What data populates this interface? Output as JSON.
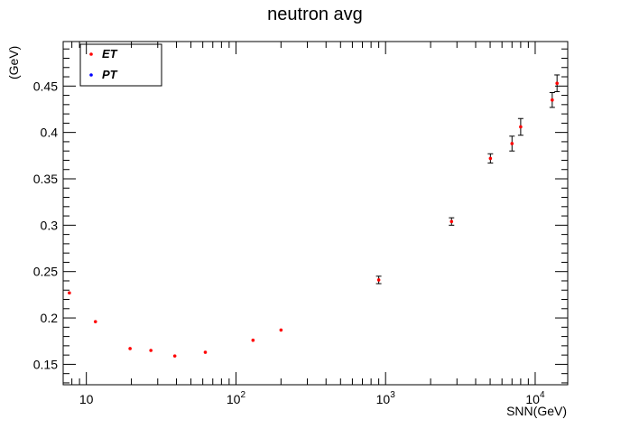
{
  "chart_data": {
    "type": "scatter",
    "title": "neutron avg",
    "xlabel": "SNN(GeV)",
    "ylabel": "(GeV)",
    "xscale": "log",
    "xlim": [
      7.0,
      16500
    ],
    "ylim": [
      0.128,
      0.498
    ],
    "x_ticks_major": [
      {
        "value": 10,
        "base": "10",
        "exp": ""
      },
      {
        "value": 100,
        "base": "10",
        "exp": "2"
      },
      {
        "value": 1000,
        "base": "10",
        "exp": "3"
      },
      {
        "value": 10000,
        "base": "10",
        "exp": "4"
      }
    ],
    "y_ticks": [
      {
        "value": 0.15,
        "label": "0.15"
      },
      {
        "value": 0.2,
        "label": "0.2"
      },
      {
        "value": 0.25,
        "label": "0.25"
      },
      {
        "value": 0.3,
        "label": "0.3"
      },
      {
        "value": 0.35,
        "label": "0.35"
      },
      {
        "value": 0.4,
        "label": "0.4"
      },
      {
        "value": 0.45,
        "label": "0.45"
      }
    ],
    "grid": false,
    "legend": {
      "position": "top-left",
      "entries": [
        {
          "name": "ET",
          "color": "#ff0000"
        },
        {
          "name": "PT",
          "color": "#0000ff"
        }
      ]
    },
    "series": [
      {
        "name": "ET",
        "color": "#ff0000",
        "points": [
          {
            "x": 7.7,
            "y": 0.227,
            "err": 0.0
          },
          {
            "x": 11.5,
            "y": 0.196,
            "err": 0.0
          },
          {
            "x": 19.6,
            "y": 0.167,
            "err": 0.0
          },
          {
            "x": 27,
            "y": 0.165,
            "err": 0.0
          },
          {
            "x": 39,
            "y": 0.159,
            "err": 0.0
          },
          {
            "x": 62.4,
            "y": 0.163,
            "err": 0.0
          },
          {
            "x": 130,
            "y": 0.176,
            "err": 0.0
          },
          {
            "x": 200,
            "y": 0.187,
            "err": 0.0
          },
          {
            "x": 900,
            "y": 0.241,
            "err": 0.004
          },
          {
            "x": 2760,
            "y": 0.304,
            "err": 0.004
          },
          {
            "x": 5020,
            "y": 0.372,
            "err": 0.005
          },
          {
            "x": 7000,
            "y": 0.388,
            "err": 0.008
          },
          {
            "x": 8000,
            "y": 0.406,
            "err": 0.009
          },
          {
            "x": 13000,
            "y": 0.435,
            "err": 0.008
          },
          {
            "x": 14000,
            "y": 0.453,
            "err": 0.009
          }
        ]
      },
      {
        "name": "PT",
        "color": "#0000ff",
        "points": []
      }
    ]
  }
}
